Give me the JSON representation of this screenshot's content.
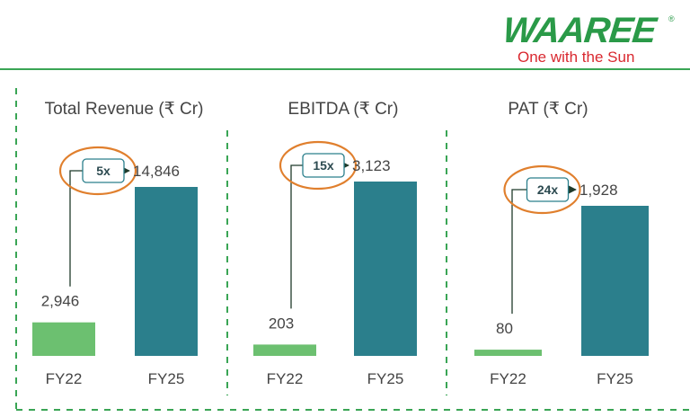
{
  "logo": {
    "wordmark": "WAAREE",
    "registered": "®",
    "tagline": "One with the Sun"
  },
  "colors": {
    "fy22_bar": "#6cc070",
    "fy25_bar": "#2b7f8c",
    "divider": "#3aa555",
    "highlight_circle": "#e07f2d",
    "arrow": "#1f3a2a",
    "badge_border": "#2b7f8c",
    "text": "#444444"
  },
  "chart_data": [
    {
      "type": "bar",
      "title": "Total Revenue (₹ Cr)",
      "categories": [
        "FY22",
        "FY25"
      ],
      "values": [
        2946,
        14846
      ],
      "value_labels": [
        "2,946",
        "14,846"
      ],
      "growth_label": "5x",
      "xlabel": "",
      "ylabel": "",
      "ylim": [
        0,
        16000
      ]
    },
    {
      "type": "bar",
      "title": "EBITDA (₹ Cr)",
      "categories": [
        "FY22",
        "FY25"
      ],
      "values": [
        203,
        3123
      ],
      "value_labels": [
        "203",
        "3,123"
      ],
      "growth_label": "15x",
      "xlabel": "",
      "ylabel": "",
      "ylim": [
        0,
        3400
      ]
    },
    {
      "type": "bar",
      "title": "PAT (₹ Cr)",
      "categories": [
        "FY22",
        "FY25"
      ],
      "values": [
        80,
        1928
      ],
      "value_labels": [
        "80",
        "1,928"
      ],
      "growth_label": "24x",
      "xlabel": "",
      "ylabel": "",
      "ylim": [
        0,
        2300
      ]
    }
  ]
}
